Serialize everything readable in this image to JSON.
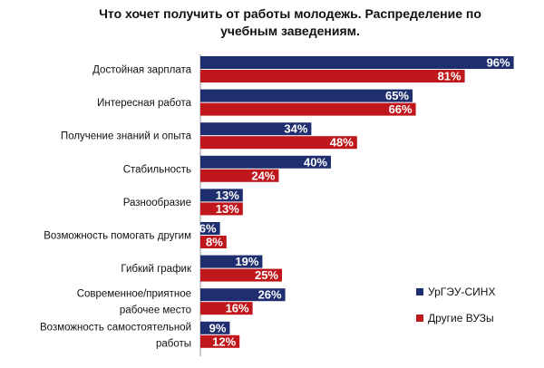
{
  "chart_data": {
    "type": "bar",
    "orientation": "horizontal",
    "title": "Что хочет получить от работы молодежь. Распределение по\nучебным заведениям.",
    "categories": [
      [
        "Достойная зарплата"
      ],
      [
        "Интересная работа"
      ],
      [
        "Получение знаний и опыта"
      ],
      [
        "Стабильность"
      ],
      [
        "Разнообразие"
      ],
      [
        "Возможность помогать другим"
      ],
      [
        "Гибкий график"
      ],
      [
        "Современное/приятное",
        "рабочее место"
      ],
      [
        "Возможность самостоятельной",
        "работы"
      ]
    ],
    "series": [
      {
        "name": "УрГЭУ-СИНХ",
        "color": "#1f2e6e",
        "values": [
          96,
          65,
          34,
          40,
          13,
          6,
          19,
          26,
          9
        ]
      },
      {
        "name": "Другие ВУЗы",
        "color": "#c0171c",
        "values": [
          81,
          66,
          48,
          24,
          13,
          8,
          25,
          16,
          12
        ]
      }
    ],
    "value_suffix": "%",
    "xlim": [
      0,
      100
    ],
    "legend_position": "right"
  }
}
